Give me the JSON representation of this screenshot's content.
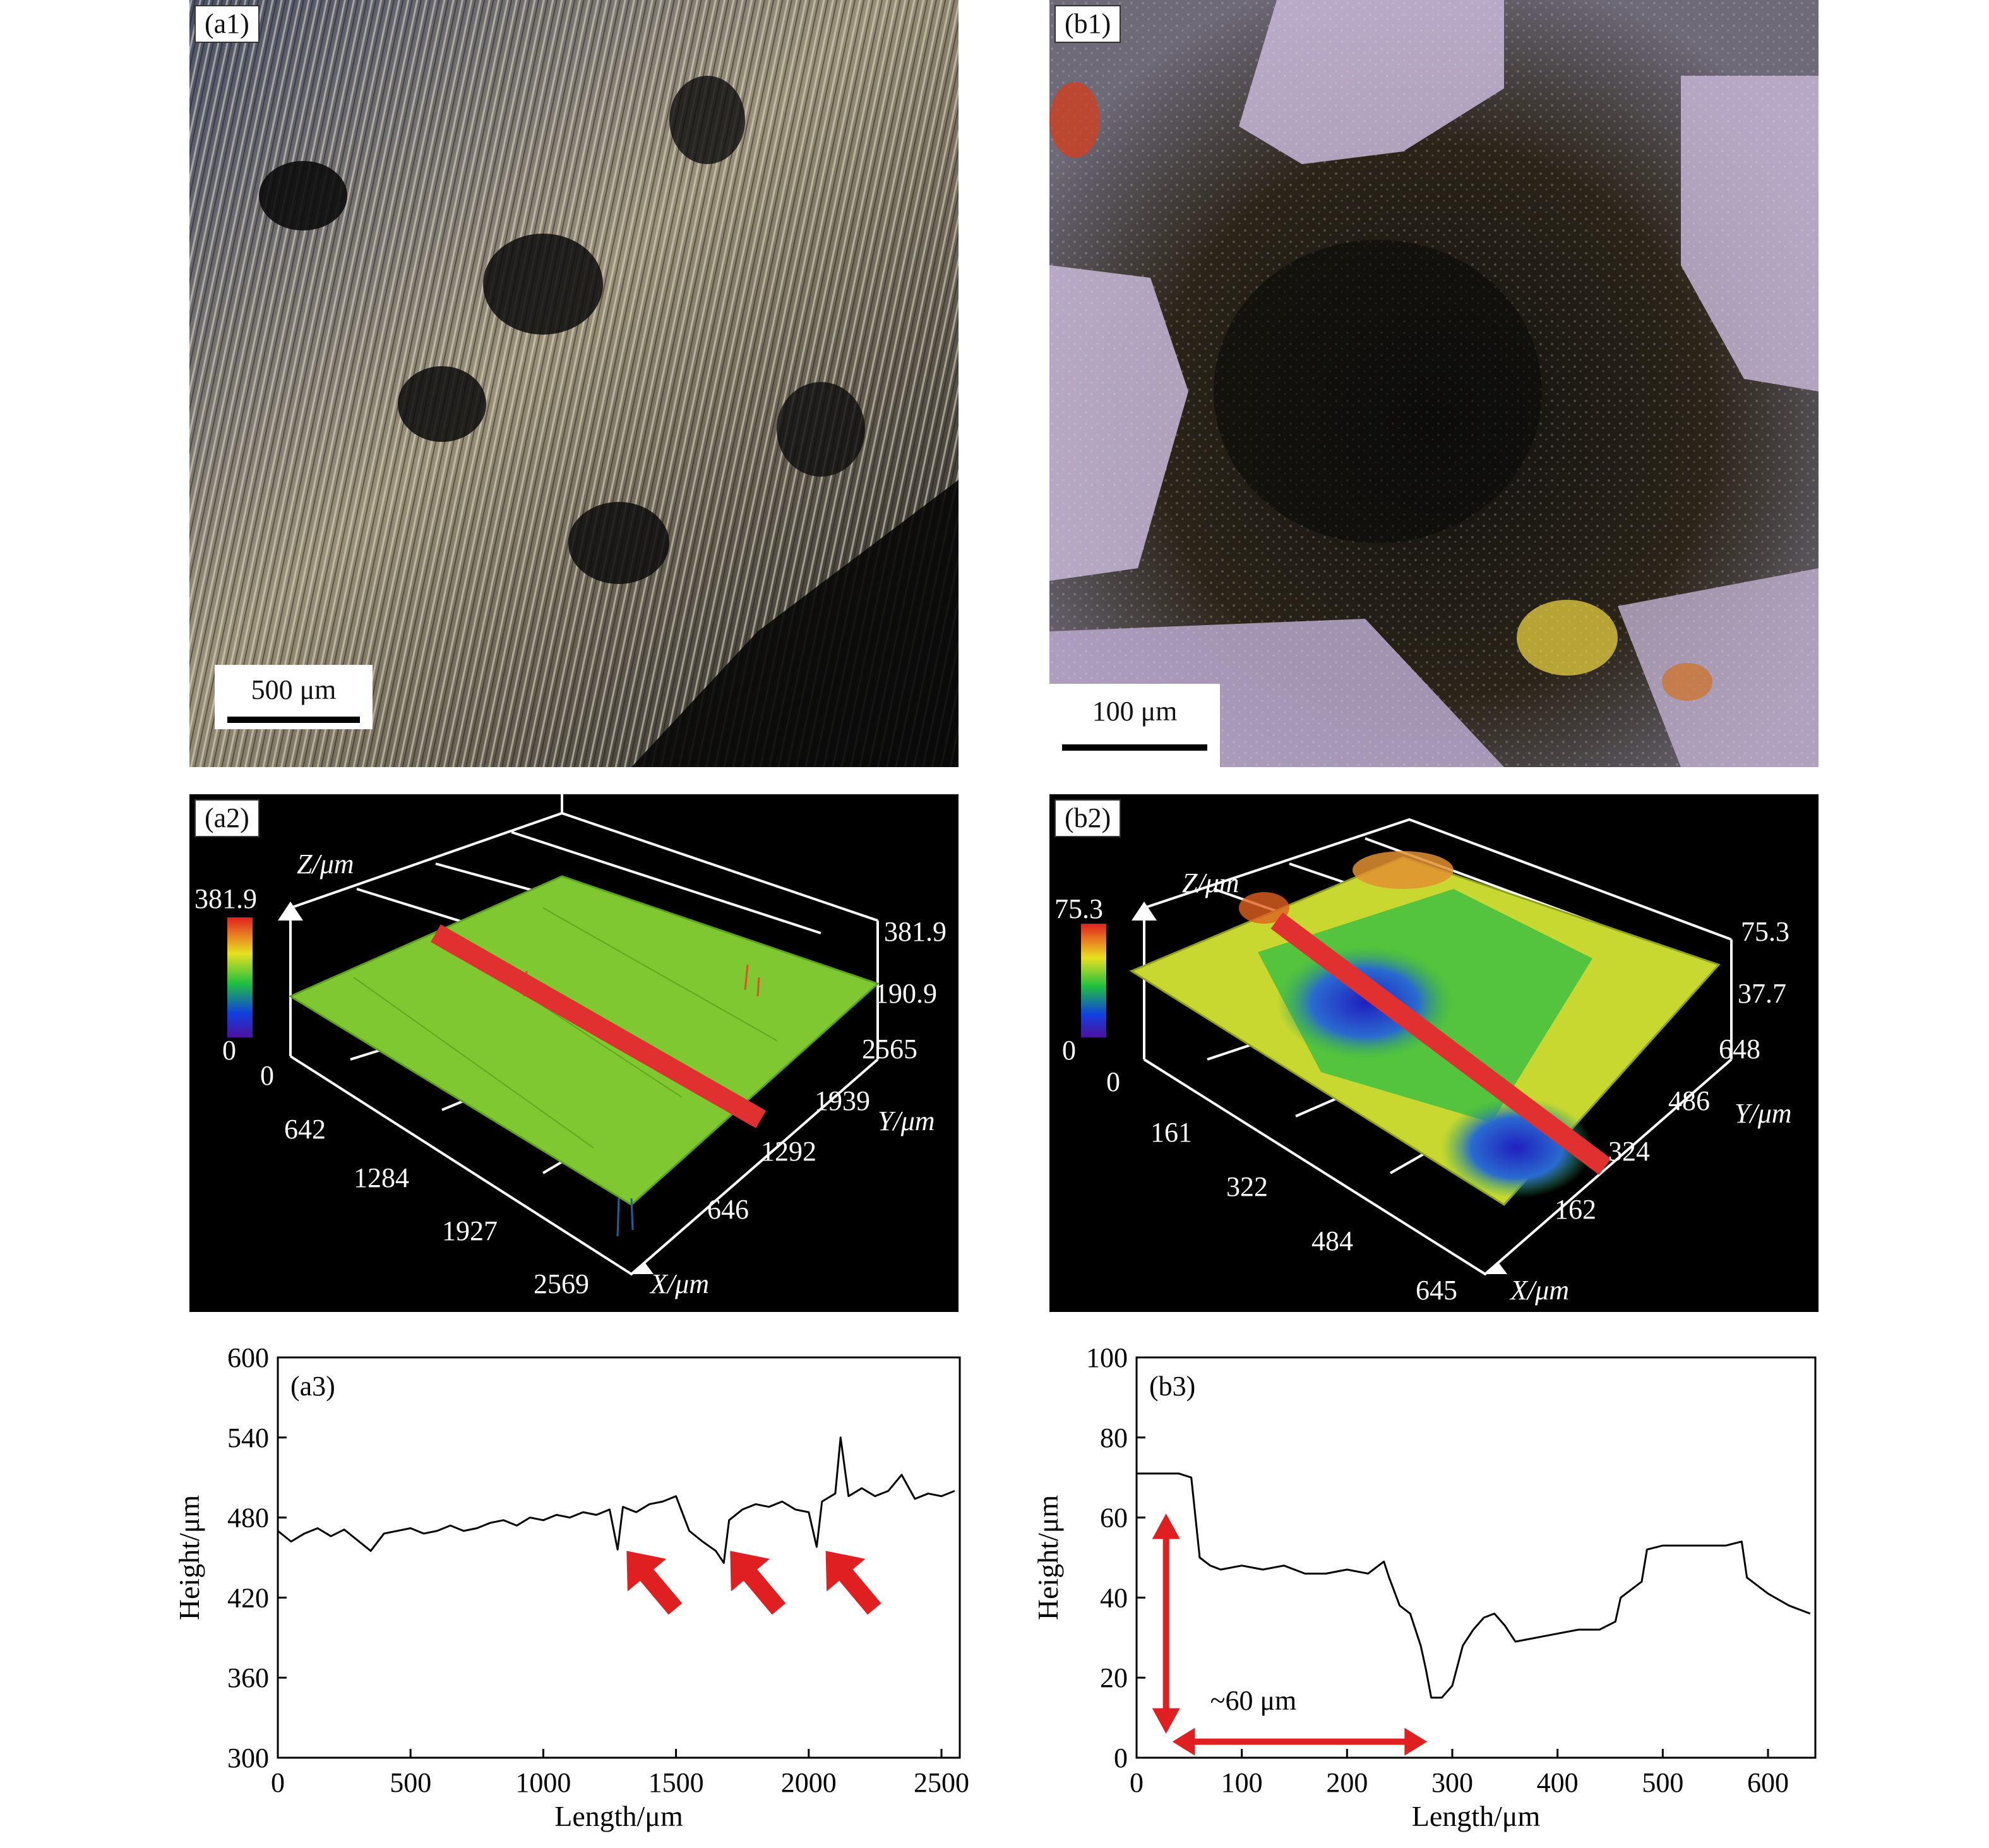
{
  "panels": {
    "a1": {
      "tag": "(a1)",
      "scale_label": "500 μm"
    },
    "b1": {
      "tag": "(b1)",
      "scale_label": "100 μm"
    },
    "a2": {
      "tag": "(a2)",
      "z_axis": "Z/μm",
      "x_axis": "X/μm",
      "y_axis": "Y/μm",
      "colorbar_max": "381.9",
      "colorbar_min": "0",
      "z_ticks": [
        "381.9",
        "190.9"
      ],
      "y_ticks": [
        "2565",
        "1939",
        "1292",
        "646"
      ],
      "x_ticks": [
        "0",
        "642",
        "1284",
        "1927",
        "2569"
      ]
    },
    "b2": {
      "tag": "(b2)",
      "z_axis": "Z/μm",
      "x_axis": "X/μm",
      "y_axis": "Y/μm",
      "colorbar_max": "75.3",
      "colorbar_min": "0",
      "z_ticks": [
        "75.3",
        "37.7"
      ],
      "y_ticks": [
        "648",
        "486",
        "324",
        "162"
      ],
      "x_ticks": [
        "0",
        "161",
        "322",
        "484",
        "645"
      ]
    },
    "b3": {
      "annotation": "~60 μm"
    }
  },
  "chart_data": [
    {
      "type": "line",
      "panel_label": "(a3)",
      "xlabel": "Length/μm",
      "ylabel": "Height/μm",
      "xlim": [
        0,
        2569
      ],
      "ylim": [
        300,
        600
      ],
      "xticks": [
        0,
        500,
        1000,
        1500,
        2000,
        2500
      ],
      "yticks": [
        300,
        360,
        420,
        480,
        540,
        600
      ],
      "series": [
        {
          "x": [
            0,
            50,
            100,
            150,
            200,
            250,
            300,
            350,
            400,
            450,
            500,
            550,
            600,
            650,
            700,
            750,
            800,
            850,
            900,
            950,
            1000,
            1050,
            1100,
            1150,
            1200,
            1250,
            1280,
            1300,
            1350,
            1400,
            1450,
            1500,
            1550,
            1600,
            1650,
            1680,
            1700,
            1750,
            1800,
            1850,
            1900,
            1950,
            2000,
            2030,
            2050,
            2100,
            2120,
            2150,
            2200,
            2250,
            2300,
            2350,
            2400,
            2450,
            2500,
            2550
          ],
          "y": [
            470,
            462,
            468,
            472,
            466,
            471,
            463,
            455,
            468,
            470,
            472,
            468,
            470,
            474,
            470,
            472,
            476,
            478,
            474,
            480,
            478,
            482,
            480,
            484,
            482,
            486,
            456,
            488,
            484,
            490,
            492,
            496,
            470,
            462,
            455,
            446,
            478,
            486,
            490,
            488,
            492,
            486,
            484,
            458,
            492,
            498,
            540,
            496,
            502,
            496,
            500,
            512,
            494,
            498,
            496,
            500
          ]
        }
      ],
      "arrows_at_x": [
        1290,
        1680,
        2040
      ]
    },
    {
      "type": "line",
      "panel_label": "(b3)",
      "xlabel": "Length/μm",
      "ylabel": "Height/μm",
      "xlim": [
        0,
        645
      ],
      "ylim": [
        0,
        100
      ],
      "xticks": [
        0,
        100,
        200,
        300,
        400,
        500,
        600
      ],
      "yticks": [
        0,
        20,
        40,
        60,
        80,
        100
      ],
      "series": [
        {
          "x": [
            0,
            20,
            40,
            52,
            56,
            60,
            70,
            80,
            100,
            120,
            140,
            160,
            180,
            200,
            220,
            235,
            240,
            250,
            260,
            270,
            275,
            280,
            290,
            300,
            310,
            320,
            330,
            340,
            350,
            360,
            380,
            400,
            420,
            440,
            455,
            460,
            480,
            485,
            500,
            520,
            540,
            560,
            575,
            580,
            600,
            620,
            640
          ],
          "y": [
            71,
            71,
            71,
            70,
            60,
            50,
            48,
            47,
            48,
            47,
            48,
            46,
            46,
            47,
            46,
            49,
            45,
            38,
            36,
            28,
            22,
            15,
            15,
            18,
            28,
            32,
            35,
            36,
            33,
            29,
            30,
            31,
            32,
            32,
            34,
            40,
            44,
            52,
            53,
            53,
            53,
            53,
            54,
            45,
            41,
            38,
            36
          ]
        }
      ],
      "annotation": "~60 μm"
    }
  ]
}
